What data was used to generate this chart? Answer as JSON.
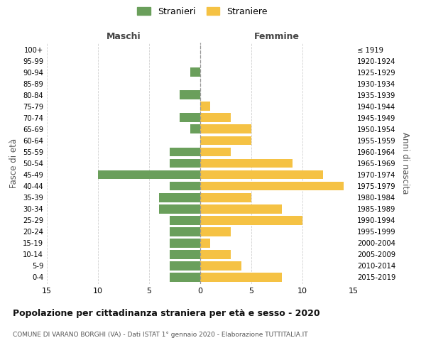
{
  "age_groups": [
    "0-4",
    "5-9",
    "10-14",
    "15-19",
    "20-24",
    "25-29",
    "30-34",
    "35-39",
    "40-44",
    "45-49",
    "50-54",
    "55-59",
    "60-64",
    "65-69",
    "70-74",
    "75-79",
    "80-84",
    "85-89",
    "90-94",
    "95-99",
    "100+"
  ],
  "birth_years": [
    "2015-2019",
    "2010-2014",
    "2005-2009",
    "2000-2004",
    "1995-1999",
    "1990-1994",
    "1985-1989",
    "1980-1984",
    "1975-1979",
    "1970-1974",
    "1965-1969",
    "1960-1964",
    "1955-1959",
    "1950-1954",
    "1945-1949",
    "1940-1944",
    "1935-1939",
    "1930-1934",
    "1925-1929",
    "1920-1924",
    "≤ 1919"
  ],
  "males": [
    3,
    3,
    3,
    3,
    3,
    3,
    4,
    4,
    3,
    10,
    3,
    3,
    0,
    1,
    2,
    0,
    2,
    0,
    1,
    0,
    0
  ],
  "females": [
    8,
    4,
    3,
    1,
    3,
    10,
    8,
    5,
    14,
    12,
    9,
    3,
    5,
    5,
    3,
    1,
    0,
    0,
    0,
    0,
    0
  ],
  "male_color": "#6a9f5b",
  "female_color": "#f5c244",
  "title": "Popolazione per cittadinanza straniera per età e sesso - 2020",
  "subtitle": "COMUNE DI VARANO BORGHI (VA) - Dati ISTAT 1° gennaio 2020 - Elaborazione TUTTITALIA.IT",
  "left_label": "Maschi",
  "right_label": "Femmine",
  "y_left_label": "Fasce di età",
  "y_right_label": "Anni di nascita",
  "legend_males": "Stranieri",
  "legend_females": "Straniere",
  "xlim": 15,
  "background_color": "#ffffff",
  "grid_color": "#d0d0d0"
}
